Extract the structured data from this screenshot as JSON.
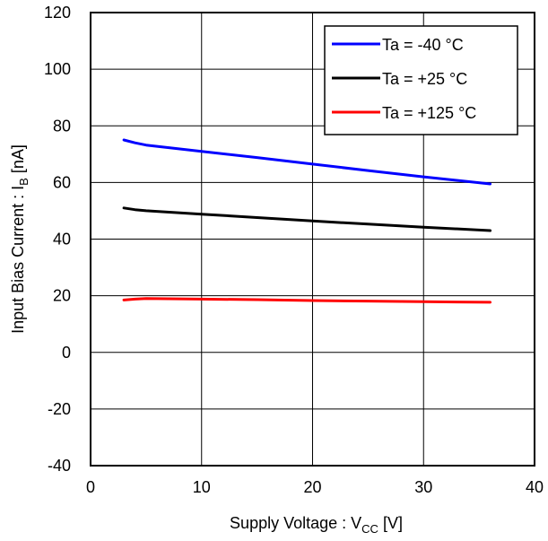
{
  "chart_data": {
    "type": "line",
    "xlabel": {
      "main": "Supply Voltage : V",
      "sub": "CC",
      "unit": " [V]"
    },
    "ylabel": {
      "main": "Input Bias Current : I",
      "sub": "B",
      "unit": " [nA]"
    },
    "xlim": [
      0,
      40
    ],
    "ylim": [
      -40,
      120
    ],
    "xticks": [
      0,
      10,
      20,
      30,
      40
    ],
    "xtick_labels": [
      "0",
      "10",
      "20",
      "30",
      "40"
    ],
    "yticks": [
      -40,
      -20,
      0,
      20,
      40,
      60,
      80,
      100,
      120
    ],
    "ytick_labels": [
      "-40",
      "-20",
      "0",
      "20",
      "40",
      "60",
      "80",
      "100",
      "120"
    ],
    "grid": true,
    "legend_position": "top-right",
    "series": [
      {
        "name": "Ta = -40 °C",
        "color": "#0000ff",
        "x": [
          3,
          4,
          5,
          10,
          15,
          20,
          25,
          30,
          36
        ],
        "y": [
          75,
          74,
          73.2,
          71,
          68.8,
          66.5,
          64.2,
          62,
          59.5
        ]
      },
      {
        "name": "Ta = +25 °C",
        "color": "#000000",
        "x": [
          3,
          4,
          5,
          10,
          15,
          20,
          25,
          30,
          36
        ],
        "y": [
          51,
          50.4,
          50,
          48.8,
          47.6,
          46.4,
          45.3,
          44.2,
          43
        ]
      },
      {
        "name": "Ta = +125 °C",
        "color": "#ff0000",
        "x": [
          3,
          4,
          5,
          10,
          15,
          20,
          25,
          30,
          36
        ],
        "y": [
          18.5,
          18.8,
          19,
          18.8,
          18.6,
          18.3,
          18.1,
          17.9,
          17.7
        ]
      }
    ]
  }
}
